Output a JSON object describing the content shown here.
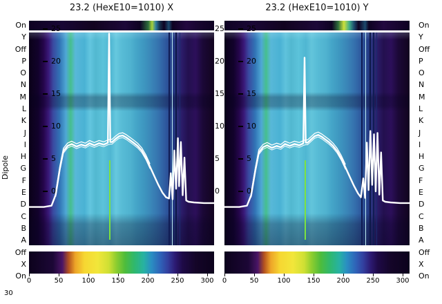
{
  "figure": {
    "left_axis_label": "Dipole",
    "stray_label": "30",
    "row_labels": [
      "On",
      "Y",
      "Off",
      "P",
      "O",
      "N",
      "M",
      "L",
      "K",
      "J",
      "I",
      "H",
      "G",
      "F",
      "E",
      "D",
      "C",
      "B",
      "A",
      "Off",
      "X",
      "On"
    ],
    "inner_y_ticks": [
      "25",
      "20",
      "15",
      "10",
      "5",
      "0"
    ],
    "between_y_ticks": [
      "25",
      "20",
      "15",
      "10",
      "5",
      "0"
    ],
    "x_ticks": [
      "0",
      "50",
      "100",
      "150",
      "200",
      "250",
      "300"
    ]
  },
  "panels": [
    {
      "title": "23.2 (HexE10=1010) X"
    },
    {
      "title": "23.2 (HexE10=1010) Y"
    }
  ],
  "chart_data": [
    {
      "type": "heatmap",
      "title": "23.2 (HexE10=1010) X",
      "xlabel": "",
      "ylabel": "Dipole",
      "x_range": [
        0,
        312
      ],
      "x_ticks": [
        0,
        50,
        100,
        150,
        200,
        250,
        300
      ],
      "y_ticks": [
        25,
        20,
        15,
        10,
        5,
        0
      ],
      "row_labels": [
        "On",
        "Y",
        "Off",
        "P",
        "O",
        "N",
        "M",
        "L",
        "K",
        "J",
        "I",
        "H",
        "G",
        "F",
        "E",
        "D",
        "C",
        "B",
        "A",
        "Off",
        "X",
        "On"
      ],
      "legend": "none",
      "grid": false,
      "profile_color": "#ffffff",
      "profile_points": [
        [
          0,
          -2.4
        ],
        [
          25,
          -2.4
        ],
        [
          38,
          -2.2
        ],
        [
          45,
          -0.5
        ],
        [
          52,
          3.5
        ],
        [
          58,
          6.2
        ],
        [
          65,
          7.0
        ],
        [
          72,
          7.3
        ],
        [
          80,
          6.9
        ],
        [
          88,
          7.2
        ],
        [
          95,
          7.0
        ],
        [
          102,
          7.4
        ],
        [
          110,
          7.1
        ],
        [
          118,
          7.4
        ],
        [
          126,
          7.2
        ],
        [
          131,
          7.4
        ],
        [
          133,
          7.5
        ],
        [
          135,
          24.3
        ],
        [
          137,
          7.6
        ],
        [
          140,
          7.6
        ],
        [
          146,
          8.1
        ],
        [
          152,
          8.5
        ],
        [
          158,
          8.6
        ],
        [
          164,
          8.3
        ],
        [
          170,
          7.9
        ],
        [
          176,
          7.5
        ],
        [
          183,
          7.0
        ],
        [
          190,
          6.3
        ],
        [
          197,
          5.2
        ],
        [
          204,
          3.8
        ],
        [
          211,
          2.4
        ],
        [
          218,
          1.0
        ],
        [
          225,
          -0.2
        ],
        [
          231,
          -0.9
        ],
        [
          236,
          -1.1
        ],
        [
          239,
          2.8
        ],
        [
          242,
          -1.2
        ],
        [
          245,
          6.3
        ],
        [
          248,
          0.4
        ],
        [
          251,
          8.2
        ],
        [
          253,
          0.8
        ],
        [
          256,
          7.6
        ],
        [
          259,
          -0.6
        ],
        [
          262,
          5.2
        ],
        [
          265,
          -1.4
        ],
        [
          269,
          -1.6
        ],
        [
          278,
          -1.7
        ],
        [
          295,
          -1.8
        ],
        [
          312,
          -1.8
        ]
      ],
      "main_gradient_stops": [
        [
          0.0,
          "#0a0118"
        ],
        [
          0.05,
          "#12022c"
        ],
        [
          0.08,
          "#26064d"
        ],
        [
          0.105,
          "#3a1878"
        ],
        [
          0.13,
          "#3a49a0"
        ],
        [
          0.165,
          "#3173b5"
        ],
        [
          0.2,
          "#4fa8d5"
        ],
        [
          0.225,
          "#46bf8e"
        ],
        [
          0.25,
          "#58b8d8"
        ],
        [
          0.3,
          "#4ab2d4"
        ],
        [
          0.33,
          "#63c6df"
        ],
        [
          0.36,
          "#52b8d0"
        ],
        [
          0.4,
          "#5cc3da"
        ],
        [
          0.44,
          "#4fb6d2"
        ],
        [
          0.47,
          "#66c8de"
        ],
        [
          0.5,
          "#58bcd6"
        ],
        [
          0.55,
          "#4fb2cf"
        ],
        [
          0.58,
          "#45a5c8"
        ],
        [
          0.62,
          "#3e97c0"
        ],
        [
          0.66,
          "#3a86b8"
        ],
        [
          0.7,
          "#3572ae"
        ],
        [
          0.735,
          "#2f5ba0"
        ],
        [
          0.76,
          "#2a4a92"
        ],
        [
          0.78,
          "#233a84"
        ],
        [
          0.8,
          "#2c2f7a"
        ],
        [
          0.83,
          "#2a1a66"
        ],
        [
          0.86,
          "#23104f"
        ],
        [
          0.9,
          "#2c0f5a"
        ],
        [
          0.94,
          "#1b0836"
        ],
        [
          1.0,
          "#12041f"
        ]
      ],
      "top_strip_stops": [
        [
          0,
          "#0e0222"
        ],
        [
          0.18,
          "#180634"
        ],
        [
          0.35,
          "#12031f"
        ],
        [
          0.52,
          "#1d0838"
        ],
        [
          0.6,
          "#0e0222"
        ],
        [
          0.645,
          "#2e6f3c"
        ],
        [
          0.665,
          "#a8d23a"
        ],
        [
          0.685,
          "#2f7f9f"
        ],
        [
          0.705,
          "#16344f"
        ],
        [
          0.73,
          "#0e0222"
        ],
        [
          0.755,
          "#1c4a6e"
        ],
        [
          0.775,
          "#0e0222"
        ],
        [
          0.85,
          "#22083f"
        ],
        [
          0.93,
          "#16052c"
        ],
        [
          1,
          "#0e0222"
        ]
      ],
      "bottom_strip_stops": [
        [
          0,
          "#0c021c"
        ],
        [
          0.13,
          "#1c0736"
        ],
        [
          0.18,
          "#4a1566"
        ],
        [
          0.215,
          "#b5531f"
        ],
        [
          0.25,
          "#eda428"
        ],
        [
          0.3,
          "#f6d732"
        ],
        [
          0.37,
          "#f2e63a"
        ],
        [
          0.43,
          "#cfe034"
        ],
        [
          0.47,
          "#8fce2f"
        ],
        [
          0.52,
          "#4dbc3c"
        ],
        [
          0.57,
          "#2fb86e"
        ],
        [
          0.62,
          "#27b2a2"
        ],
        [
          0.66,
          "#2a8fc2"
        ],
        [
          0.71,
          "#2f62b8"
        ],
        [
          0.75,
          "#333f9e"
        ],
        [
          0.79,
          "#2c1a72"
        ],
        [
          0.83,
          "#1e0a46"
        ],
        [
          0.9,
          "#140528"
        ],
        [
          1,
          "#0c021c"
        ]
      ],
      "row_shading": [
        [
          0,
          "rgba(215,240,255,0.20)"
        ],
        [
          0.035,
          "rgba(0,0,0,0)"
        ],
        [
          0.28,
          "rgba(0,0,0,0)"
        ],
        [
          0.305,
          "rgba(6,2,30,0.30)"
        ],
        [
          0.345,
          "rgba(6,2,30,0.28)"
        ],
        [
          0.37,
          "rgba(0,0,0,0)"
        ],
        [
          0.85,
          "rgba(0,0,0,0)"
        ],
        [
          0.9,
          "rgba(8,3,34,0.30)"
        ],
        [
          1,
          "rgba(8,3,34,0.42)"
        ]
      ],
      "vlines": [
        {
          "x": 0.433,
          "from": 0.6,
          "to": 0.975,
          "width": 2,
          "color": "#7de23f"
        },
        {
          "x": 0.752,
          "from": 0,
          "to": 1,
          "width": 2,
          "color": "#101c54"
        },
        {
          "x": 0.772,
          "from": 0,
          "to": 1,
          "width": 1,
          "color": "#bff0f5"
        },
        {
          "x": 0.792,
          "from": 0,
          "to": 1,
          "width": 2,
          "color": "#0d1848"
        },
        {
          "x": 0.812,
          "from": 0,
          "to": 1,
          "width": 1,
          "color": "#1a2a6e"
        }
      ]
    },
    {
      "type": "heatmap",
      "title": "23.2 (HexE10=1010) Y",
      "xlabel": "",
      "ylabel": "Dipole",
      "x_range": [
        0,
        312
      ],
      "x_ticks": [
        0,
        50,
        100,
        150,
        200,
        250,
        300
      ],
      "y_ticks": [
        25,
        20,
        15,
        10,
        5,
        0
      ],
      "row_labels": [
        "On",
        "Y",
        "Off",
        "P",
        "O",
        "N",
        "M",
        "L",
        "K",
        "J",
        "I",
        "H",
        "G",
        "F",
        "E",
        "D",
        "C",
        "B",
        "A",
        "Off",
        "X",
        "On"
      ],
      "legend": "none",
      "grid": false,
      "profile_color": "#ffffff",
      "profile_points": [
        [
          0,
          -2.4
        ],
        [
          25,
          -2.4
        ],
        [
          38,
          -2.2
        ],
        [
          45,
          -0.6
        ],
        [
          52,
          3.2
        ],
        [
          58,
          6.0
        ],
        [
          65,
          6.8
        ],
        [
          72,
          7.1
        ],
        [
          80,
          6.7
        ],
        [
          88,
          7.0
        ],
        [
          95,
          6.8
        ],
        [
          102,
          7.3
        ],
        [
          110,
          7.0
        ],
        [
          118,
          7.3
        ],
        [
          126,
          7.1
        ],
        [
          131,
          7.3
        ],
        [
          133,
          7.4
        ],
        [
          135,
          20.6
        ],
        [
          137,
          7.5
        ],
        [
          140,
          7.5
        ],
        [
          146,
          8.0
        ],
        [
          152,
          8.5
        ],
        [
          158,
          8.7
        ],
        [
          164,
          8.4
        ],
        [
          170,
          8.0
        ],
        [
          176,
          7.6
        ],
        [
          183,
          7.0
        ],
        [
          190,
          6.2
        ],
        [
          197,
          5.1
        ],
        [
          204,
          3.7
        ],
        [
          211,
          2.3
        ],
        [
          218,
          0.9
        ],
        [
          225,
          -0.3
        ],
        [
          230,
          -0.9
        ],
        [
          234,
          2.0
        ],
        [
          237,
          -1.0
        ],
        [
          240,
          7.5
        ],
        [
          243,
          0.2
        ],
        [
          246,
          9.3
        ],
        [
          249,
          1.0
        ],
        [
          252,
          8.8
        ],
        [
          255,
          0.0
        ],
        [
          258,
          9.0
        ],
        [
          261,
          -0.5
        ],
        [
          264,
          6.0
        ],
        [
          267,
          -1.4
        ],
        [
          271,
          -1.6
        ],
        [
          280,
          -1.7
        ],
        [
          296,
          -1.8
        ],
        [
          312,
          -1.8
        ]
      ],
      "main_gradient_stops": [
        [
          0.0,
          "#0a0118"
        ],
        [
          0.05,
          "#12022c"
        ],
        [
          0.08,
          "#26064d"
        ],
        [
          0.105,
          "#3a1878"
        ],
        [
          0.13,
          "#3a49a0"
        ],
        [
          0.165,
          "#3173b5"
        ],
        [
          0.2,
          "#4fa8d5"
        ],
        [
          0.225,
          "#46bf8e"
        ],
        [
          0.25,
          "#58b8d8"
        ],
        [
          0.3,
          "#4ab2d4"
        ],
        [
          0.33,
          "#5fc2dc"
        ],
        [
          0.36,
          "#52b8d0"
        ],
        [
          0.4,
          "#5cc3da"
        ],
        [
          0.44,
          "#4fb6d2"
        ],
        [
          0.47,
          "#63c5db"
        ],
        [
          0.5,
          "#58bcd6"
        ],
        [
          0.55,
          "#4fb2cf"
        ],
        [
          0.58,
          "#45a5c8"
        ],
        [
          0.62,
          "#3e97c0"
        ],
        [
          0.66,
          "#3a86b8"
        ],
        [
          0.7,
          "#3572ae"
        ],
        [
          0.735,
          "#2f5ba0"
        ],
        [
          0.76,
          "#2a4a92"
        ],
        [
          0.78,
          "#233a84"
        ],
        [
          0.8,
          "#2c2f7a"
        ],
        [
          0.83,
          "#2a1a66"
        ],
        [
          0.86,
          "#23104f"
        ],
        [
          0.9,
          "#2c0f5a"
        ],
        [
          0.94,
          "#1b0836"
        ],
        [
          1.0,
          "#12041f"
        ]
      ],
      "top_strip_stops": [
        [
          0,
          "#0e0222"
        ],
        [
          0.15,
          "#1a0736"
        ],
        [
          0.32,
          "#12031f"
        ],
        [
          0.5,
          "#1d0838"
        ],
        [
          0.58,
          "#0e0222"
        ],
        [
          0.615,
          "#2e6f3c"
        ],
        [
          0.645,
          "#cde03c"
        ],
        [
          0.675,
          "#3fae8a"
        ],
        [
          0.7,
          "#1c4a6e"
        ],
        [
          0.725,
          "#0e0222"
        ],
        [
          0.76,
          "#1c4a6e"
        ],
        [
          0.78,
          "#0e0222"
        ],
        [
          0.86,
          "#22083f"
        ],
        [
          1,
          "#0e0222"
        ]
      ],
      "bottom_strip_stops": [
        [
          0,
          "#0c021c"
        ],
        [
          0.13,
          "#1c0736"
        ],
        [
          0.18,
          "#4a1566"
        ],
        [
          0.215,
          "#b5531f"
        ],
        [
          0.25,
          "#eda428"
        ],
        [
          0.3,
          "#f6d732"
        ],
        [
          0.37,
          "#f2e63a"
        ],
        [
          0.43,
          "#cfe034"
        ],
        [
          0.47,
          "#8fce2f"
        ],
        [
          0.52,
          "#4dbc3c"
        ],
        [
          0.57,
          "#2fb86e"
        ],
        [
          0.62,
          "#27b2a2"
        ],
        [
          0.66,
          "#2a8fc2"
        ],
        [
          0.71,
          "#2f62b8"
        ],
        [
          0.75,
          "#333f9e"
        ],
        [
          0.79,
          "#2c1a72"
        ],
        [
          0.83,
          "#1e0a46"
        ],
        [
          0.9,
          "#140528"
        ],
        [
          1,
          "#0c021c"
        ]
      ],
      "row_shading": [
        [
          0,
          "rgba(215,240,255,0.20)"
        ],
        [
          0.035,
          "rgba(0,0,0,0)"
        ],
        [
          0.28,
          "rgba(0,0,0,0)"
        ],
        [
          0.305,
          "rgba(6,2,30,0.30)"
        ],
        [
          0.345,
          "rgba(6,2,30,0.28)"
        ],
        [
          0.37,
          "rgba(0,0,0,0)"
        ],
        [
          0.85,
          "rgba(0,0,0,0)"
        ],
        [
          0.9,
          "rgba(8,3,34,0.30)"
        ],
        [
          1,
          "rgba(8,3,34,0.42)"
        ]
      ],
      "vlines": [
        {
          "x": 0.433,
          "from": 0.6,
          "to": 0.975,
          "width": 2,
          "color": "#7de23f"
        },
        {
          "x": 0.738,
          "from": 0,
          "to": 1,
          "width": 2,
          "color": "#101c54"
        },
        {
          "x": 0.76,
          "from": 0,
          "to": 1,
          "width": 1,
          "color": "#bff0f5"
        },
        {
          "x": 0.782,
          "from": 0,
          "to": 1,
          "width": 2,
          "color": "#0d1848"
        },
        {
          "x": 0.802,
          "from": 0,
          "to": 1,
          "width": 2,
          "color": "#101c54"
        },
        {
          "x": 0.822,
          "from": 0,
          "to": 1,
          "width": 1,
          "color": "#1a2a6e"
        }
      ]
    }
  ]
}
